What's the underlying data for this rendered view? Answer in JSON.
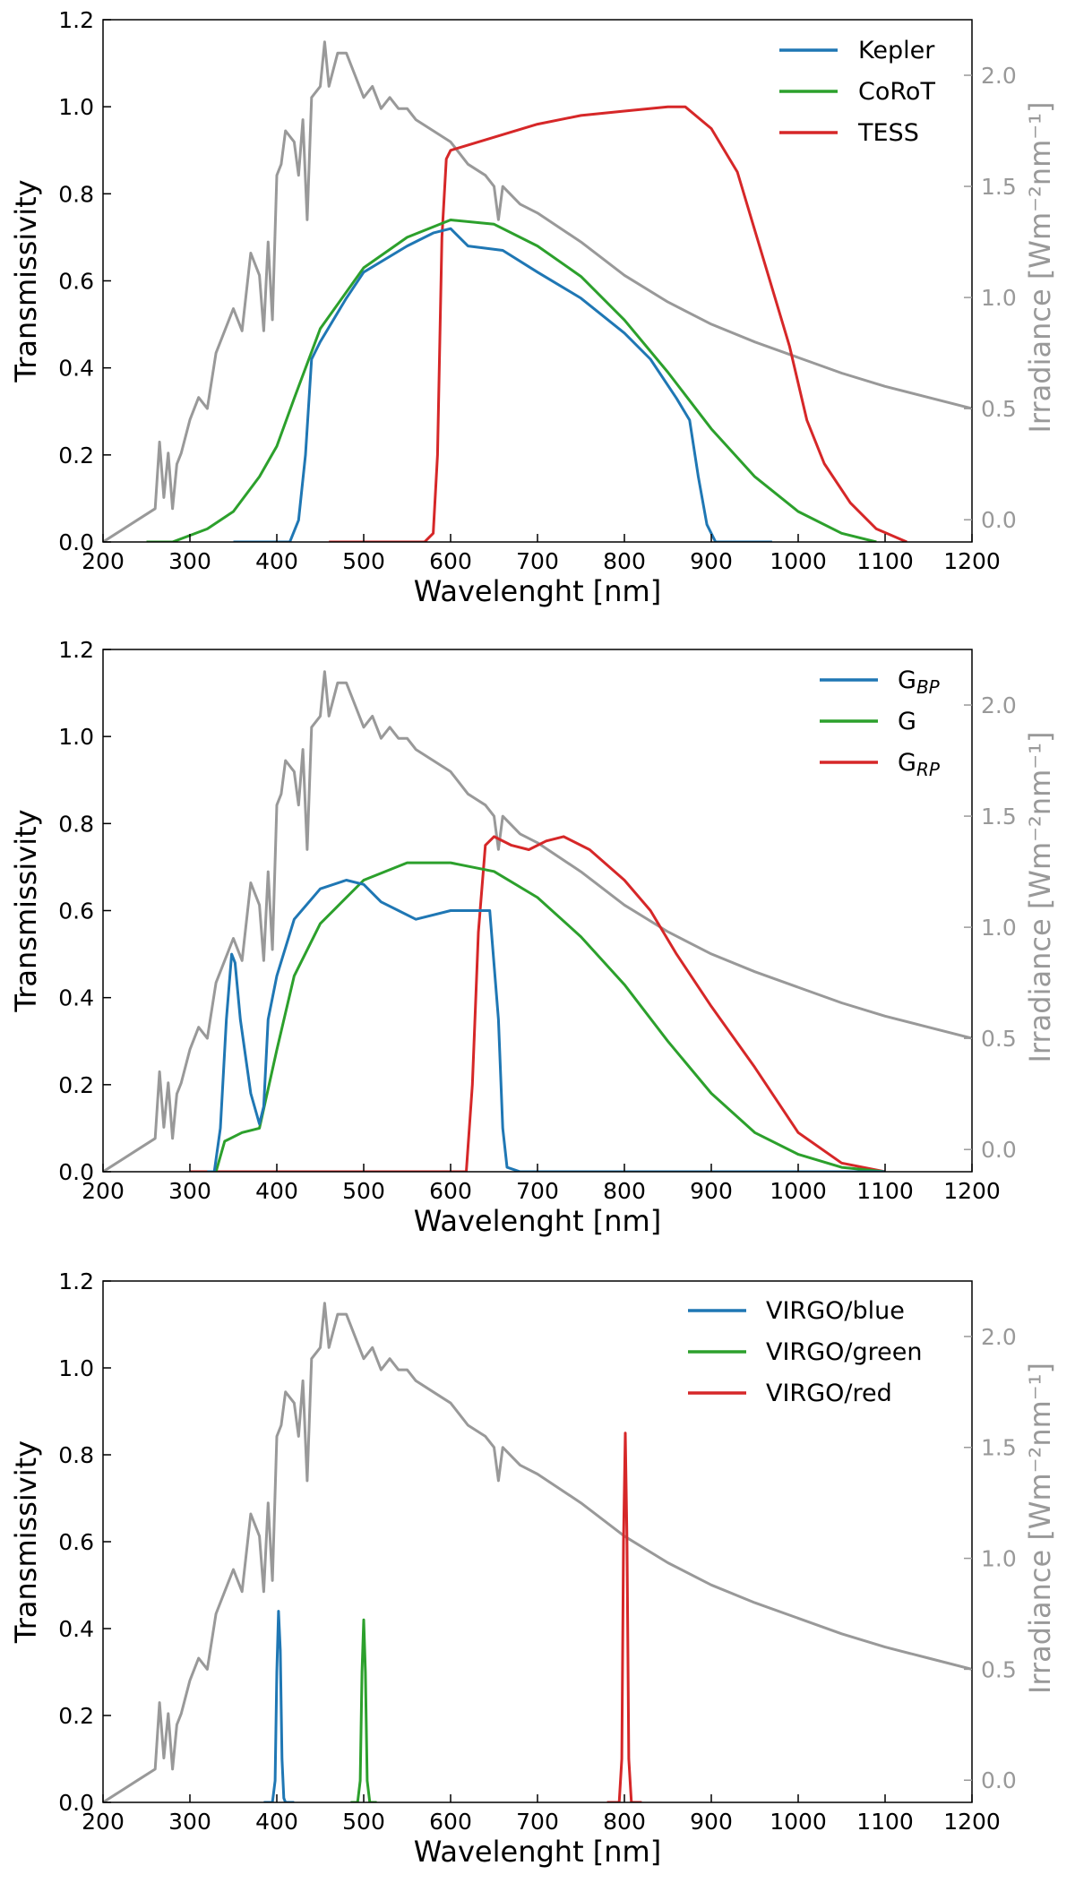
{
  "chart_data": [
    {
      "type": "line",
      "xlabel": "Wavelenght [nm]",
      "ylabel": "Transmissivity",
      "y2label": "Irradiance [Wm⁻²nm⁻¹]",
      "xlim": [
        200,
        1200
      ],
      "ylim": [
        0,
        1.2
      ],
      "y2lim": [
        -0.1,
        2.25
      ],
      "xticks": [
        200,
        300,
        400,
        500,
        600,
        700,
        800,
        900,
        1000,
        1100,
        1200
      ],
      "yticks": [
        "0.0",
        "0.2",
        "0.4",
        "0.6",
        "0.8",
        "1.0",
        "1.2"
      ],
      "y2ticks": [
        "0.0",
        "0.5",
        "1.0",
        "1.5",
        "2.0"
      ],
      "legend_position": "top-right",
      "series": [
        {
          "name": "Kepler",
          "color": "#1f77b4",
          "x": [
            350,
            415,
            425,
            433,
            440,
            450,
            480,
            500,
            550,
            580,
            600,
            620,
            660,
            700,
            750,
            800,
            830,
            860,
            875,
            885,
            895,
            905,
            915,
            970
          ],
          "y": [
            0.0,
            0.0,
            0.05,
            0.2,
            0.42,
            0.46,
            0.56,
            0.62,
            0.68,
            0.71,
            0.72,
            0.68,
            0.67,
            0.62,
            0.56,
            0.48,
            0.42,
            0.33,
            0.28,
            0.15,
            0.04,
            0.0,
            0.0,
            0.0
          ]
        },
        {
          "name": "CoRoT",
          "color": "#2ca02c",
          "x": [
            250,
            280,
            320,
            350,
            380,
            400,
            420,
            450,
            500,
            550,
            600,
            650,
            700,
            750,
            800,
            850,
            900,
            950,
            1000,
            1050,
            1090
          ],
          "y": [
            0.0,
            0.0,
            0.03,
            0.07,
            0.15,
            0.22,
            0.33,
            0.49,
            0.63,
            0.7,
            0.74,
            0.73,
            0.68,
            0.61,
            0.51,
            0.39,
            0.26,
            0.15,
            0.07,
            0.02,
            0.0
          ]
        },
        {
          "name": "TESS",
          "color": "#d62728",
          "x": [
            460,
            570,
            580,
            585,
            590,
            595,
            600,
            650,
            700,
            750,
            800,
            850,
            870,
            900,
            930,
            960,
            990,
            1010,
            1030,
            1060,
            1090,
            1125
          ],
          "y": [
            0.0,
            0.0,
            0.02,
            0.2,
            0.7,
            0.88,
            0.9,
            0.93,
            0.96,
            0.98,
            0.99,
            1.0,
            1.0,
            0.95,
            0.85,
            0.65,
            0.45,
            0.28,
            0.18,
            0.09,
            0.03,
            0.0
          ]
        },
        {
          "name": "",
          "color": "#999999",
          "axis": "right",
          "x": [
            200,
            220,
            240,
            260,
            265,
            270,
            275,
            280,
            285,
            290,
            300,
            310,
            320,
            330,
            340,
            350,
            360,
            370,
            380,
            385,
            390,
            395,
            400,
            405,
            410,
            420,
            425,
            430,
            435,
            440,
            450,
            455,
            460,
            470,
            480,
            490,
            500,
            510,
            520,
            530,
            540,
            550,
            560,
            580,
            600,
            620,
            640,
            650,
            655,
            660,
            680,
            700,
            750,
            800,
            850,
            900,
            950,
            1000,
            1050,
            1100,
            1150,
            1200
          ],
          "y": [
            -0.1,
            -0.05,
            0.0,
            0.05,
            0.35,
            0.1,
            0.3,
            0.05,
            0.25,
            0.3,
            0.45,
            0.55,
            0.5,
            0.75,
            0.85,
            0.95,
            0.85,
            1.2,
            1.1,
            0.85,
            1.25,
            0.9,
            1.55,
            1.6,
            1.75,
            1.7,
            1.55,
            1.8,
            1.35,
            1.9,
            1.95,
            2.15,
            1.95,
            2.1,
            2.1,
            2.0,
            1.9,
            1.95,
            1.85,
            1.9,
            1.85,
            1.85,
            1.8,
            1.75,
            1.7,
            1.6,
            1.55,
            1.5,
            1.35,
            1.5,
            1.42,
            1.38,
            1.25,
            1.1,
            0.98,
            0.88,
            0.8,
            0.73,
            0.66,
            0.6,
            0.55,
            0.5
          ]
        }
      ]
    },
    {
      "type": "line",
      "xlabel": "Wavelenght [nm]",
      "ylabel": "Transmissivity",
      "y2label": "Irradiance [Wm⁻²nm⁻¹]",
      "xlim": [
        200,
        1200
      ],
      "ylim": [
        0,
        1.2
      ],
      "y2lim": [
        -0.1,
        2.25
      ],
      "xticks": [
        200,
        300,
        400,
        500,
        600,
        700,
        800,
        900,
        1000,
        1100,
        1200
      ],
      "yticks": [
        "0.0",
        "0.2",
        "0.4",
        "0.6",
        "0.8",
        "1.0",
        "1.2"
      ],
      "y2ticks": [
        "0.0",
        "0.5",
        "1.0",
        "1.5",
        "2.0"
      ],
      "legend_position": "top-right",
      "series": [
        {
          "name": "G",
          "sub": "BP",
          "color": "#1f77b4",
          "x": [
            320,
            328,
            335,
            342,
            348,
            352,
            358,
            370,
            380,
            385,
            390,
            400,
            420,
            450,
            480,
            500,
            520,
            540,
            560,
            600,
            630,
            645,
            655,
            660,
            665,
            680,
            1100
          ],
          "y": [
            0.0,
            0.0,
            0.1,
            0.35,
            0.5,
            0.48,
            0.35,
            0.18,
            0.11,
            0.15,
            0.35,
            0.45,
            0.58,
            0.65,
            0.67,
            0.66,
            0.62,
            0.6,
            0.58,
            0.6,
            0.6,
            0.6,
            0.35,
            0.1,
            0.01,
            0.0,
            0.0
          ]
        },
        {
          "name": "G",
          "sub": "",
          "color": "#2ca02c",
          "x": [
            320,
            330,
            340,
            360,
            380,
            400,
            420,
            450,
            500,
            550,
            600,
            650,
            700,
            750,
            800,
            850,
            900,
            950,
            1000,
            1050,
            1100
          ],
          "y": [
            0.0,
            0.0,
            0.07,
            0.09,
            0.1,
            0.28,
            0.45,
            0.57,
            0.67,
            0.71,
            0.71,
            0.69,
            0.63,
            0.54,
            0.43,
            0.3,
            0.18,
            0.09,
            0.04,
            0.01,
            0.0
          ]
        },
        {
          "name": "G",
          "sub": "RP",
          "color": "#d62728",
          "x": [
            300,
            618,
            625,
            632,
            640,
            650,
            670,
            690,
            710,
            730,
            760,
            800,
            830,
            860,
            900,
            950,
            1000,
            1050,
            1100
          ],
          "y": [
            0.0,
            0.0,
            0.2,
            0.55,
            0.75,
            0.77,
            0.75,
            0.74,
            0.76,
            0.77,
            0.74,
            0.67,
            0.6,
            0.5,
            0.38,
            0.24,
            0.09,
            0.02,
            0.0
          ]
        },
        {
          "name": "",
          "color": "#999999",
          "axis": "right",
          "x": [
            200,
            220,
            240,
            260,
            265,
            270,
            275,
            280,
            285,
            290,
            300,
            310,
            320,
            330,
            340,
            350,
            360,
            370,
            380,
            385,
            390,
            395,
            400,
            405,
            410,
            420,
            425,
            430,
            435,
            440,
            450,
            455,
            460,
            470,
            480,
            490,
            500,
            510,
            520,
            530,
            540,
            550,
            560,
            580,
            600,
            620,
            640,
            650,
            655,
            660,
            680,
            700,
            750,
            800,
            850,
            900,
            950,
            1000,
            1050,
            1100,
            1150,
            1200
          ],
          "y": [
            -0.1,
            -0.05,
            0.0,
            0.05,
            0.35,
            0.1,
            0.3,
            0.05,
            0.25,
            0.3,
            0.45,
            0.55,
            0.5,
            0.75,
            0.85,
            0.95,
            0.85,
            1.2,
            1.1,
            0.85,
            1.25,
            0.9,
            1.55,
            1.6,
            1.75,
            1.7,
            1.55,
            1.8,
            1.35,
            1.9,
            1.95,
            2.15,
            1.95,
            2.1,
            2.1,
            2.0,
            1.9,
            1.95,
            1.85,
            1.9,
            1.85,
            1.85,
            1.8,
            1.75,
            1.7,
            1.6,
            1.55,
            1.5,
            1.35,
            1.5,
            1.42,
            1.38,
            1.25,
            1.1,
            0.98,
            0.88,
            0.8,
            0.73,
            0.66,
            0.6,
            0.55,
            0.5
          ]
        }
      ]
    },
    {
      "type": "line",
      "xlabel": "Wavelenght [nm]",
      "ylabel": "Transmissivity",
      "y2label": "Irradiance [Wm⁻²nm⁻¹]",
      "xlim": [
        200,
        1200
      ],
      "ylim": [
        0,
        1.2
      ],
      "y2lim": [
        -0.1,
        2.25
      ],
      "xticks": [
        200,
        300,
        400,
        500,
        600,
        700,
        800,
        900,
        1000,
        1100,
        1200
      ],
      "yticks": [
        "0.0",
        "0.2",
        "0.4",
        "0.6",
        "0.8",
        "1.0",
        "1.2"
      ],
      "y2ticks": [
        "0.0",
        "0.5",
        "1.0",
        "1.5",
        "2.0"
      ],
      "legend_position": "top-right",
      "series": [
        {
          "name": "VIRGO/blue",
          "color": "#1f77b4",
          "x": [
            385,
            395,
            398,
            400,
            402,
            404,
            406,
            408,
            410,
            420
          ],
          "y": [
            0.0,
            0.0,
            0.05,
            0.3,
            0.44,
            0.35,
            0.1,
            0.01,
            0.0,
            0.0
          ]
        },
        {
          "name": "VIRGO/green",
          "color": "#2ca02c",
          "x": [
            485,
            493,
            496,
            498,
            500,
            502,
            504,
            507,
            515
          ],
          "y": [
            0.0,
            0.0,
            0.05,
            0.3,
            0.42,
            0.3,
            0.05,
            0.0,
            0.0
          ]
        },
        {
          "name": "VIRGO/red",
          "color": "#d62728",
          "x": [
            780,
            794,
            797,
            799,
            801,
            803,
            805,
            808,
            820
          ],
          "y": [
            0.0,
            0.0,
            0.1,
            0.6,
            0.85,
            0.6,
            0.1,
            0.0,
            0.0
          ]
        },
        {
          "name": "",
          "color": "#999999",
          "axis": "right",
          "x": [
            200,
            220,
            240,
            260,
            265,
            270,
            275,
            280,
            285,
            290,
            300,
            310,
            320,
            330,
            340,
            350,
            360,
            370,
            380,
            385,
            390,
            395,
            400,
            405,
            410,
            420,
            425,
            430,
            435,
            440,
            450,
            455,
            460,
            470,
            480,
            490,
            500,
            510,
            520,
            530,
            540,
            550,
            560,
            580,
            600,
            620,
            640,
            650,
            655,
            660,
            680,
            700,
            750,
            800,
            850,
            900,
            950,
            1000,
            1050,
            1100,
            1150,
            1200
          ],
          "y": [
            -0.1,
            -0.05,
            0.0,
            0.05,
            0.35,
            0.1,
            0.3,
            0.05,
            0.25,
            0.3,
            0.45,
            0.55,
            0.5,
            0.75,
            0.85,
            0.95,
            0.85,
            1.2,
            1.1,
            0.85,
            1.25,
            0.9,
            1.55,
            1.6,
            1.75,
            1.7,
            1.55,
            1.8,
            1.35,
            1.9,
            1.95,
            2.15,
            1.95,
            2.1,
            2.1,
            2.0,
            1.9,
            1.95,
            1.85,
            1.9,
            1.85,
            1.85,
            1.8,
            1.75,
            1.7,
            1.6,
            1.55,
            1.5,
            1.35,
            1.5,
            1.42,
            1.38,
            1.25,
            1.1,
            0.98,
            0.88,
            0.8,
            0.73,
            0.66,
            0.6,
            0.55,
            0.5
          ]
        }
      ]
    }
  ]
}
